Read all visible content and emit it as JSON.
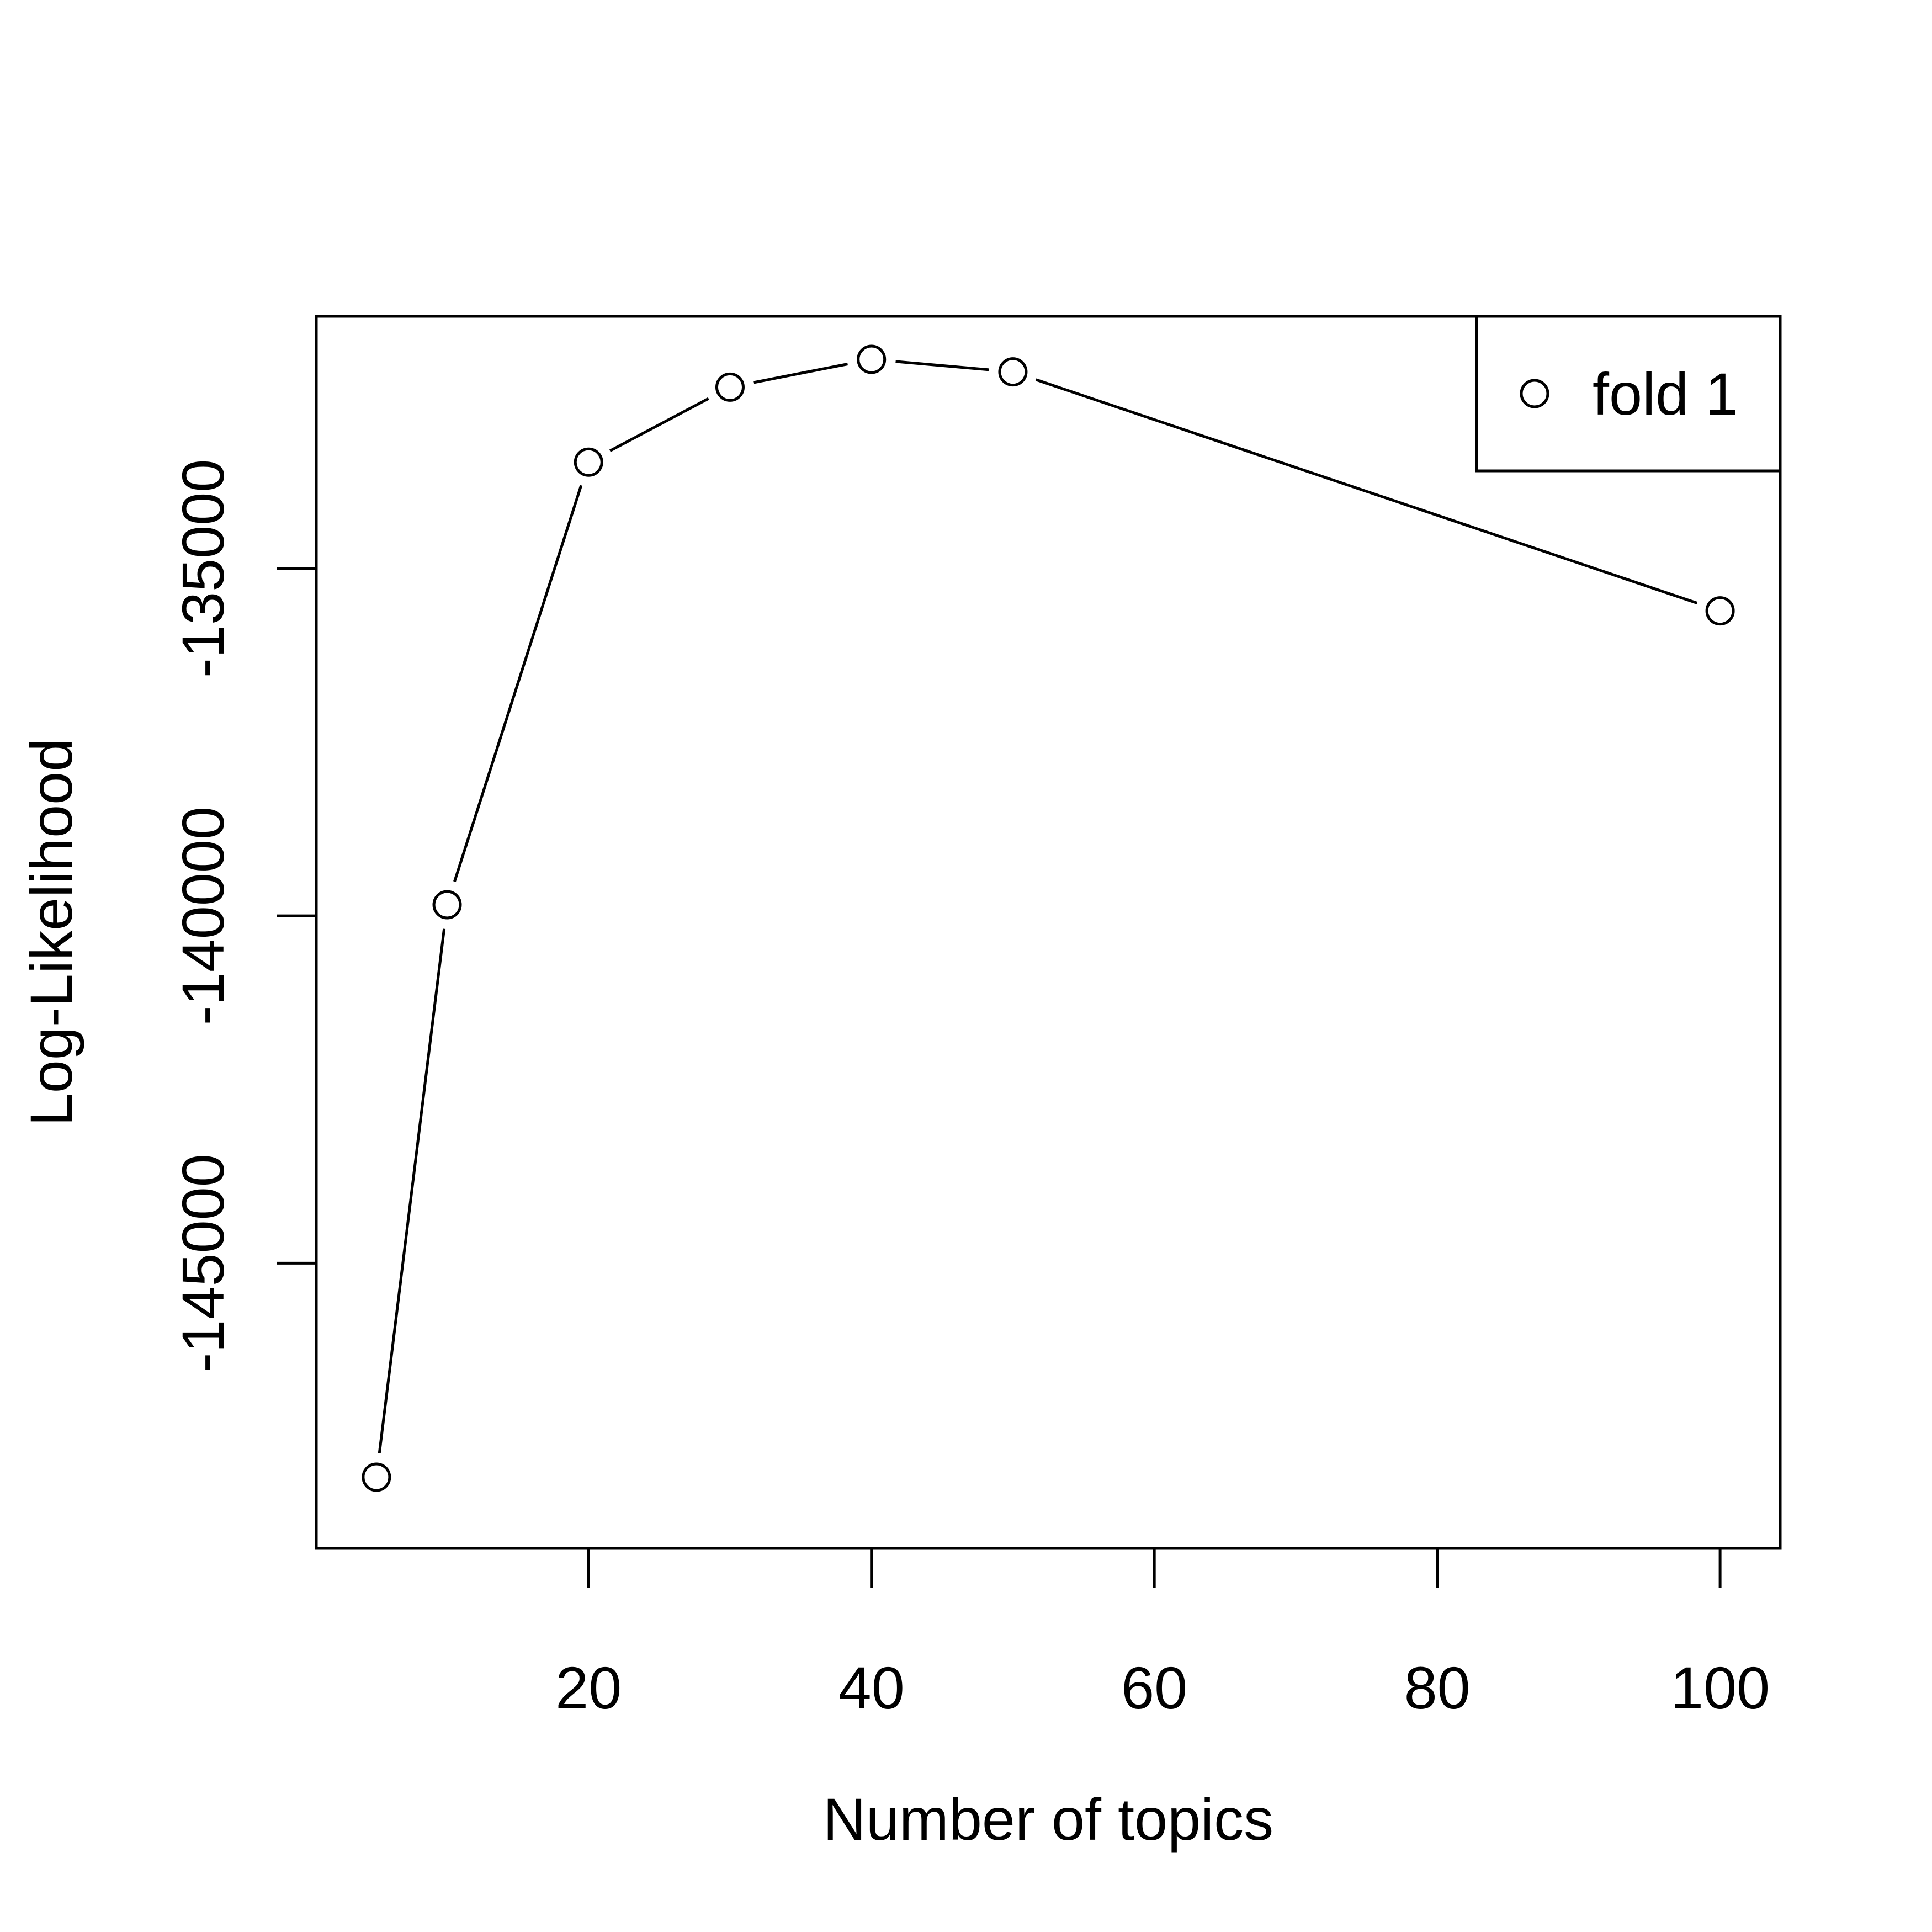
{
  "chart_data": {
    "type": "line",
    "xlabel": "Number of topics",
    "ylabel": "Log-Likelihood",
    "xlim": [
      0.75,
      104.25
    ],
    "ylim": [
      -149105,
      -131370
    ],
    "x_ticks": [
      20,
      40,
      60,
      80,
      100
    ],
    "x_tick_labels": [
      "20",
      "40",
      "60",
      "80",
      "100"
    ],
    "y_ticks": [
      -145000,
      -140000,
      -135000
    ],
    "y_tick_labels": [
      "-145000",
      "-140000",
      "-135000"
    ],
    "series": [
      {
        "name": "fold 1",
        "marker": "open-circle",
        "x": [
          5,
          10,
          20,
          30,
          40,
          50,
          100
        ],
        "y": [
          -148080,
          -139840,
          -133470,
          -132390,
          -131990,
          -132170,
          -135610
        ]
      }
    ],
    "legend": {
      "position": "top-right",
      "entries": [
        "fold 1"
      ]
    },
    "grid": false
  }
}
